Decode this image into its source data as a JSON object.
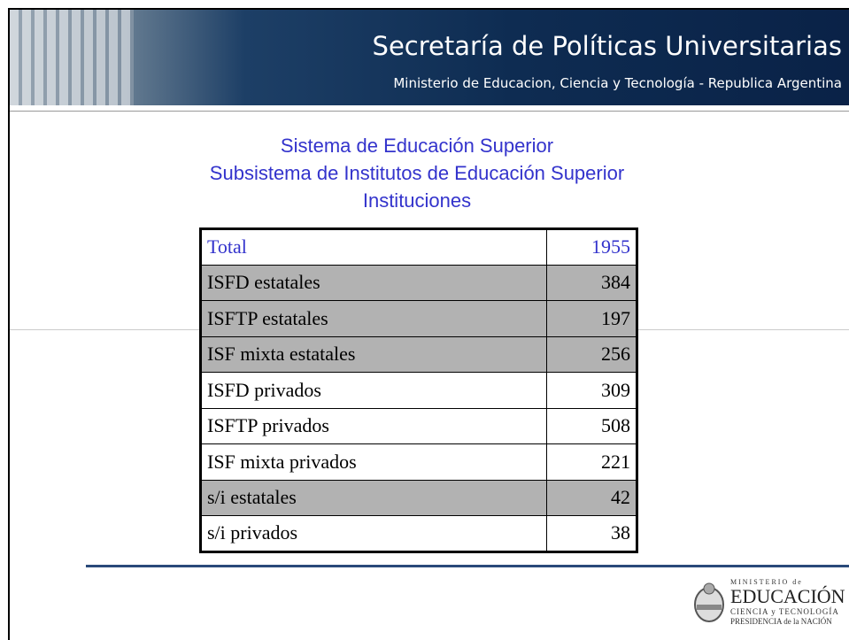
{
  "header": {
    "title": "Secretaría de Políticas Universitarias",
    "subtitle": "Ministerio de Educacion, Ciencia y Tecnología - Republica Argentina"
  },
  "titles": [
    "Sistema de Educación Superior",
    "Subsistema de Institutos de Educación Superior",
    "Instituciones"
  ],
  "table": {
    "rows": [
      [
        "Total",
        1955
      ],
      [
        "ISFD estatales",
        384
      ],
      [
        "ISFTP estatales",
        197
      ],
      [
        "ISF mixta estatales",
        256
      ],
      [
        "ISFD privados",
        309
      ],
      [
        "ISFTP privados",
        508
      ],
      [
        "ISF mixta privados",
        221
      ],
      [
        "s/i estatales",
        42
      ],
      [
        "s/i privados",
        38
      ]
    ]
  },
  "logo": {
    "line1": "MINISTERIO de",
    "line2": "EDUCACIÓN",
    "line3": "CIENCIA y TECNOLOGÍA",
    "line4": "PRESIDENCIA de la NACIÓN"
  }
}
